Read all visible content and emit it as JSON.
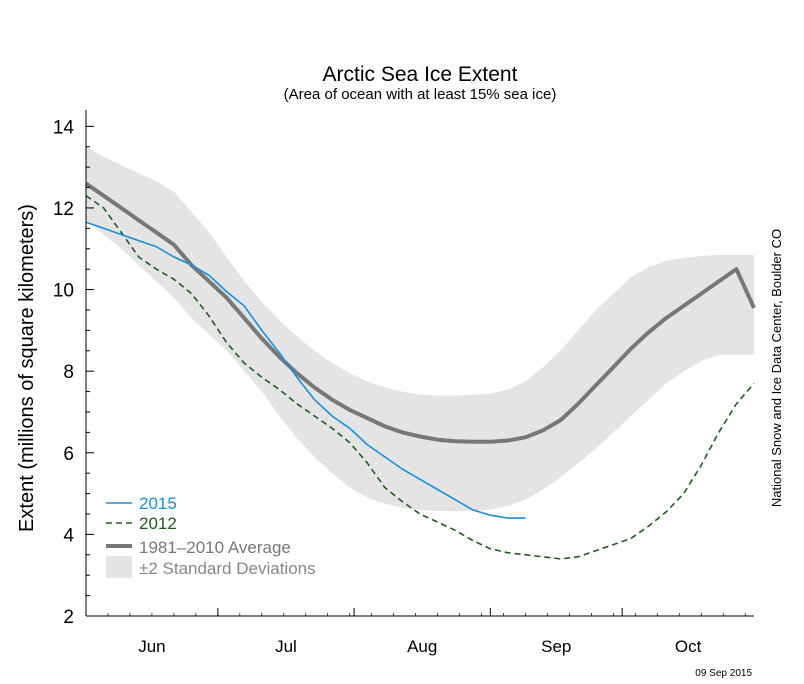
{
  "chart_data": {
    "type": "line",
    "title": "Arctic Sea Ice Extent",
    "subtitle": "(Area of ocean with at least 15% sea ice)",
    "ylabel": "Extent (millions of square kilometers)",
    "xlabel": "",
    "ylim": [
      2,
      14.4
    ],
    "yticks": [
      2,
      4,
      6,
      8,
      10,
      12,
      14
    ],
    "x_day_range": [
      0,
      152
    ],
    "x_axis": [
      {
        "label": "Jun",
        "start": 0
      },
      {
        "label": "Jul",
        "start": 30
      },
      {
        "label": "Aug",
        "start": 61
      },
      {
        "label": "Sep",
        "start": 92
      },
      {
        "label": "Oct",
        "start": 122
      }
    ],
    "grid": false,
    "legend_position": "bottom-left",
    "credit": "National Snow and Ice Data Center, Boulder CO",
    "date_stamp": "09 Sep 2015",
    "colors": {
      "s2015": "#1a8fdc",
      "s2012": "#1f5c1f",
      "average": "#777777",
      "band": "#e4e4e4"
    },
    "legend": [
      {
        "label": "2015",
        "style": "solid-blue"
      },
      {
        "label": "2012",
        "style": "dashed-green"
      },
      {
        "label": "1981–2010 Average",
        "style": "thick-gray"
      },
      {
        "label": "±2 Standard Deviations",
        "style": "band"
      }
    ],
    "series": [
      {
        "name": "2015",
        "x": [
          0,
          4,
          8,
          12,
          16,
          20,
          24,
          28,
          32,
          36,
          40,
          44,
          48,
          52,
          56,
          60,
          64,
          68,
          72,
          76,
          80,
          84,
          88,
          92,
          96,
          100
        ],
        "y": [
          11.65,
          11.5,
          11.35,
          11.2,
          11.05,
          10.8,
          10.6,
          10.35,
          9.95,
          9.6,
          9.0,
          8.45,
          7.85,
          7.3,
          6.9,
          6.6,
          6.2,
          5.9,
          5.6,
          5.35,
          5.1,
          4.85,
          4.6,
          4.47,
          4.4,
          4.4
        ]
      },
      {
        "name": "2012",
        "x": [
          0,
          4,
          8,
          12,
          16,
          20,
          24,
          28,
          32,
          36,
          40,
          44,
          48,
          52,
          56,
          60,
          64,
          68,
          72,
          76,
          80,
          84,
          88,
          92,
          96,
          100,
          104,
          108,
          112,
          116,
          120,
          124,
          128,
          132,
          136,
          140,
          144,
          148,
          152
        ],
        "y": [
          12.3,
          12.0,
          11.4,
          10.8,
          10.5,
          10.25,
          9.9,
          9.35,
          8.7,
          8.2,
          7.85,
          7.55,
          7.2,
          6.9,
          6.6,
          6.25,
          5.75,
          5.15,
          4.8,
          4.5,
          4.3,
          4.1,
          3.85,
          3.65,
          3.55,
          3.5,
          3.45,
          3.4,
          3.45,
          3.6,
          3.75,
          3.9,
          4.2,
          4.55,
          5.0,
          5.7,
          6.5,
          7.2,
          7.7
        ]
      },
      {
        "name": "1981–2010 Average",
        "x": [
          0,
          4,
          8,
          12,
          16,
          20,
          24,
          28,
          32,
          36,
          40,
          44,
          48,
          52,
          56,
          60,
          64,
          68,
          72,
          76,
          80,
          84,
          88,
          92,
          96,
          100,
          104,
          108,
          112,
          116,
          120,
          124,
          128,
          132,
          136,
          140,
          144,
          148,
          152
        ],
        "y": [
          12.6,
          12.3,
          12.0,
          11.7,
          11.4,
          11.1,
          10.6,
          10.2,
          9.8,
          9.3,
          8.8,
          8.35,
          7.95,
          7.6,
          7.3,
          7.05,
          6.85,
          6.65,
          6.5,
          6.4,
          6.32,
          6.28,
          6.27,
          6.27,
          6.3,
          6.38,
          6.55,
          6.8,
          7.2,
          7.65,
          8.1,
          8.55,
          8.95,
          9.3,
          9.6,
          9.9,
          10.2,
          10.5,
          9.55
        ]
      },
      {
        "name": "±2 Standard Deviations",
        "x": [
          0,
          4,
          8,
          12,
          16,
          20,
          24,
          28,
          32,
          36,
          40,
          44,
          48,
          52,
          56,
          60,
          64,
          68,
          72,
          76,
          80,
          84,
          88,
          92,
          96,
          100,
          104,
          108,
          112,
          116,
          120,
          124,
          128,
          132,
          136,
          140,
          144,
          148,
          152
        ],
        "upper": [
          13.5,
          13.25,
          13.05,
          12.85,
          12.65,
          12.4,
          11.9,
          11.4,
          10.8,
          10.2,
          9.7,
          9.25,
          8.85,
          8.5,
          8.2,
          7.95,
          7.75,
          7.6,
          7.5,
          7.42,
          7.4,
          7.4,
          7.42,
          7.45,
          7.55,
          7.75,
          8.1,
          8.5,
          9.0,
          9.5,
          9.9,
          10.3,
          10.55,
          10.7,
          10.78,
          10.82,
          10.85,
          10.85,
          10.85
        ],
        "lower": [
          11.7,
          11.35,
          11.0,
          10.6,
          10.2,
          9.8,
          9.3,
          8.9,
          8.5,
          8.0,
          7.5,
          6.9,
          6.35,
          5.9,
          5.5,
          5.15,
          4.9,
          4.75,
          4.65,
          4.6,
          4.57,
          4.57,
          4.58,
          4.6,
          4.7,
          4.85,
          5.1,
          5.4,
          5.75,
          6.1,
          6.5,
          6.9,
          7.3,
          7.7,
          8.0,
          8.25,
          8.4,
          8.4,
          8.4
        ]
      }
    ]
  }
}
